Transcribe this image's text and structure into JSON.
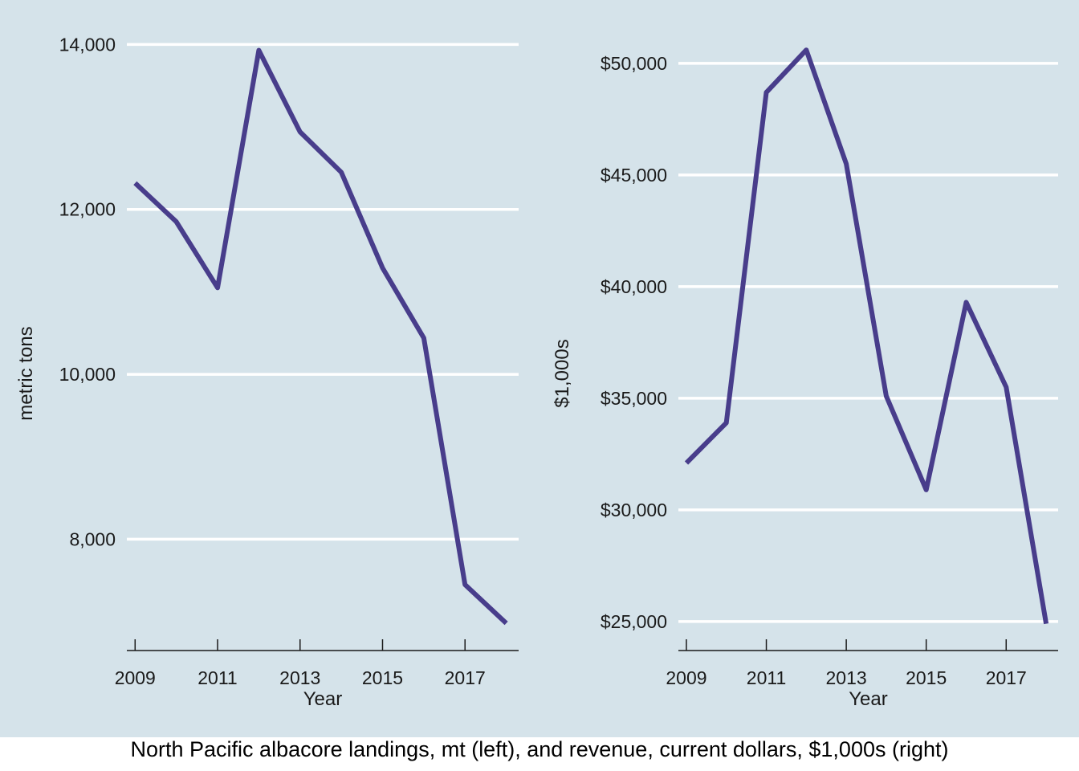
{
  "caption": "North Pacific albacore landings, mt (left), and revenue, current dollars, $1,000s (right)",
  "colors": {
    "panel_background": "#d5e3ea",
    "line": "#483d8b",
    "grid": "#ffffff"
  },
  "chart_data": [
    {
      "type": "line",
      "xlabel": "Year",
      "ylabel": "metric tons",
      "x": [
        2009,
        2010,
        2011,
        2012,
        2013,
        2014,
        2015,
        2016,
        2017,
        2018
      ],
      "series": [
        {
          "values": [
            12320,
            11850,
            11050,
            13930,
            12940,
            12450,
            11290,
            10440,
            7450,
            6980
          ]
        }
      ],
      "xticks": [
        2009,
        2011,
        2013,
        2015,
        2017
      ],
      "xtick_labels": [
        "2009",
        "2011",
        "2013",
        "2015",
        "2017"
      ],
      "yticks": [
        8000,
        10000,
        12000,
        14000
      ],
      "ytick_labels": [
        "8,000",
        "10,000",
        "12,000",
        "14,000"
      ],
      "xlim": [
        2008.8,
        2018.3
      ],
      "ylim": [
        6650,
        14150
      ],
      "grid": "horizontal"
    },
    {
      "type": "line",
      "xlabel": "Year",
      "ylabel": "$1,000s",
      "x": [
        2009,
        2010,
        2011,
        2012,
        2013,
        2014,
        2015,
        2016,
        2017,
        2018
      ],
      "series": [
        {
          "values": [
            32100,
            33900,
            48700,
            50600,
            45500,
            35100,
            30900,
            39300,
            35500,
            24900
          ]
        }
      ],
      "xticks": [
        2009,
        2011,
        2013,
        2015,
        2017
      ],
      "xtick_labels": [
        "2009",
        "2011",
        "2013",
        "2015",
        "2017"
      ],
      "yticks": [
        25000,
        30000,
        35000,
        40000,
        45000,
        50000
      ],
      "ytick_labels": [
        "$25,000",
        "$30,000",
        "$35,000",
        "$40,000",
        "$45,000",
        "$50,000"
      ],
      "xlim": [
        2008.8,
        2018.3
      ],
      "ylim": [
        23700,
        51400
      ],
      "grid": "horizontal"
    }
  ]
}
